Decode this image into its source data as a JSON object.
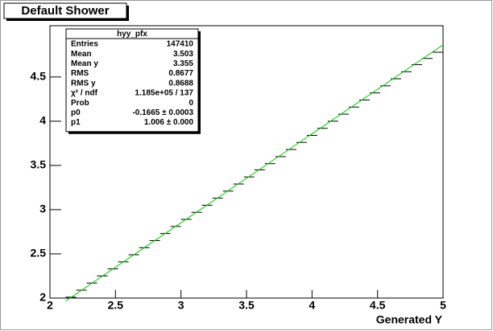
{
  "chart_data": {
    "type": "profile",
    "title": "Default Shower",
    "x_label": "Generated Y",
    "xlim": [
      2,
      5
    ],
    "xticks": [
      2,
      2.5,
      3,
      3.5,
      4,
      4.5,
      5
    ],
    "ylim": [
      2,
      5.08
    ],
    "yticks": [
      2,
      2.5,
      3,
      3.5,
      4,
      4.5
    ],
    "bin_width": 0.08,
    "color": "#000000",
    "x": [
      2.16,
      2.24,
      2.32,
      2.4,
      2.48,
      2.56,
      2.64,
      2.72,
      2.8,
      2.88,
      2.96,
      3.04,
      3.12,
      3.2,
      3.28,
      3.36,
      3.44,
      3.52,
      3.6,
      3.68,
      3.76,
      3.84,
      3.92,
      4.0,
      4.08,
      4.16,
      4.24,
      4.32,
      4.4,
      4.48,
      4.56,
      4.64,
      4.72,
      4.8,
      4.88,
      4.96
    ],
    "values": [
      2.01,
      2.09,
      2.17,
      2.25,
      2.33,
      2.41,
      2.49,
      2.57,
      2.65,
      2.73,
      2.81,
      2.89,
      2.97,
      3.05,
      3.13,
      3.21,
      3.29,
      3.37,
      3.45,
      3.52,
      3.6,
      3.68,
      3.76,
      3.84,
      3.92,
      4.0,
      4.08,
      4.16,
      4.24,
      4.32,
      4.4,
      4.48,
      4.56,
      4.64,
      4.71,
      4.78
    ],
    "fit": {
      "p0": -0.1665,
      "p1": 1.006,
      "color": "#00cc00"
    },
    "stats": {
      "title": "hyy_pfx",
      "rows": [
        [
          "Entries",
          "147410"
        ],
        [
          "Mean",
          "3.503"
        ],
        [
          "Mean y",
          "3.355"
        ],
        [
          "RMS",
          "0.8677"
        ],
        [
          "RMS y",
          "0.8688"
        ],
        [
          "χ² / ndf",
          "1.185e+05 / 137"
        ],
        [
          "Prob",
          "0"
        ],
        [
          "p0",
          "-0.1665 ± 0.0003"
        ],
        [
          "p1",
          "1.006 ± 0.000"
        ]
      ]
    }
  }
}
